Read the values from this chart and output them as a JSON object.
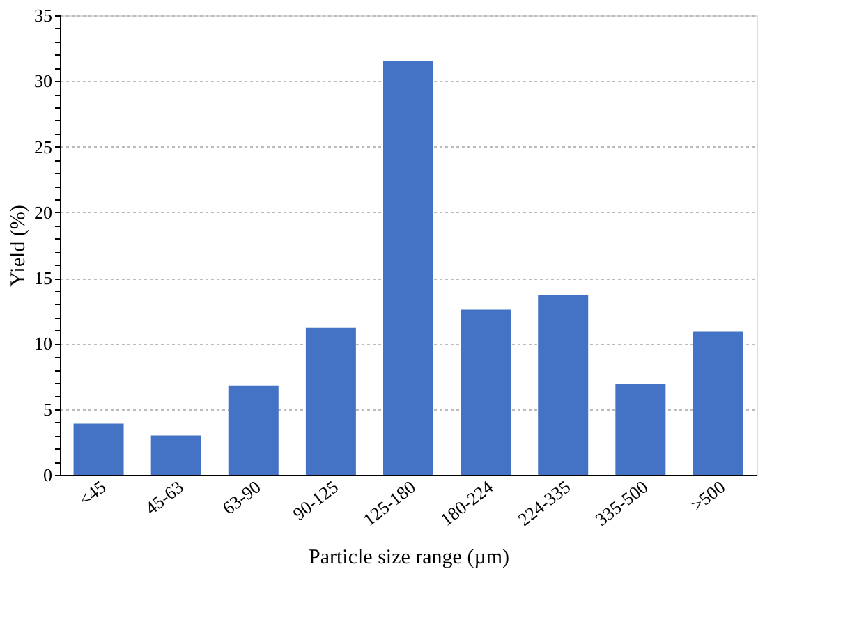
{
  "chart_data": {
    "type": "bar",
    "xlabel": "Particle size range (µm)",
    "ylabel": "Yield (%)",
    "categories": [
      "<45",
      "45-63",
      "63-90",
      "90-125",
      "125-180",
      "180-224",
      "224-335",
      "335-500",
      ">500"
    ],
    "values": [
      3.9,
      3.0,
      6.8,
      11.2,
      31.5,
      12.6,
      13.7,
      6.9,
      10.9
    ],
    "color": "#4472c4",
    "ylim": [
      0,
      35
    ],
    "yticks": [
      0,
      {
        "value": 1,
        "label": null
      },
      {
        "value": 2,
        "label": null
      },
      {
        "value": 3,
        "label": null
      },
      {
        "value": 4,
        "label": null
      },
      5,
      {
        "value": 6,
        "label": null
      },
      {
        "value": 7,
        "label": null
      },
      {
        "value": 8,
        "label": null
      },
      {
        "value": 9,
        "label": null
      },
      10,
      {
        "value": 11,
        "label": null
      },
      {
        "value": 12,
        "label": null
      },
      {
        "value": 13,
        "label": null
      },
      {
        "value": 14,
        "label": null
      },
      15,
      {
        "value": 16,
        "label": null
      },
      {
        "value": 17,
        "label": null
      },
      {
        "value": 18,
        "label": null
      },
      {
        "value": 19,
        "label": null
      },
      20,
      {
        "value": 21,
        "label": null
      },
      {
        "value": 22,
        "label": null
      },
      {
        "value": 23,
        "label": null
      },
      {
        "value": 24,
        "label": null
      },
      25,
      {
        "value": 26,
        "label": null
      },
      {
        "value": 27,
        "label": null
      },
      {
        "value": 28,
        "label": null
      },
      {
        "value": 29,
        "label": null
      },
      30,
      {
        "value": 31,
        "label": null
      },
      {
        "value": 32,
        "label": null
      },
      {
        "value": 33,
        "label": null
      },
      {
        "value": 34,
        "label": null
      },
      35
    ],
    "grid": "y"
  }
}
